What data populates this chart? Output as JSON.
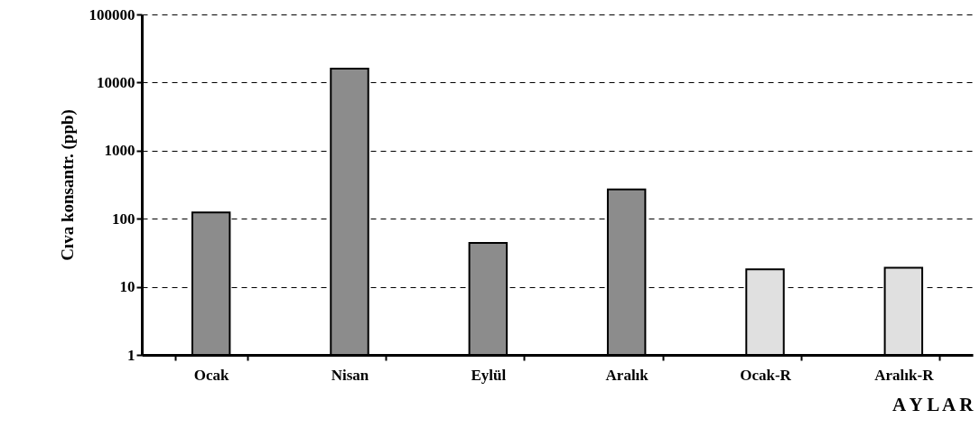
{
  "chart_data": {
    "type": "bar",
    "xlabel": "A Y L A R",
    "ylabel": "Cıva konsantr. (ppb)",
    "categories": [
      "Ocak",
      "Nisan",
      "Eylül",
      "Aralık",
      "Ocak-R",
      "Aralık-R"
    ],
    "values": [
      124,
      16000,
      44,
      270,
      18,
      19
    ],
    "colors": [
      "#8c8c8c",
      "#8c8c8c",
      "#8c8c8c",
      "#8c8c8c",
      "#e0e0e0",
      "#e0e0e0"
    ],
    "log": "y",
    "ylim": [
      1,
      100000
    ],
    "yticks": [
      1,
      10,
      100,
      1000,
      10000,
      100000
    ],
    "grid": "y"
  }
}
